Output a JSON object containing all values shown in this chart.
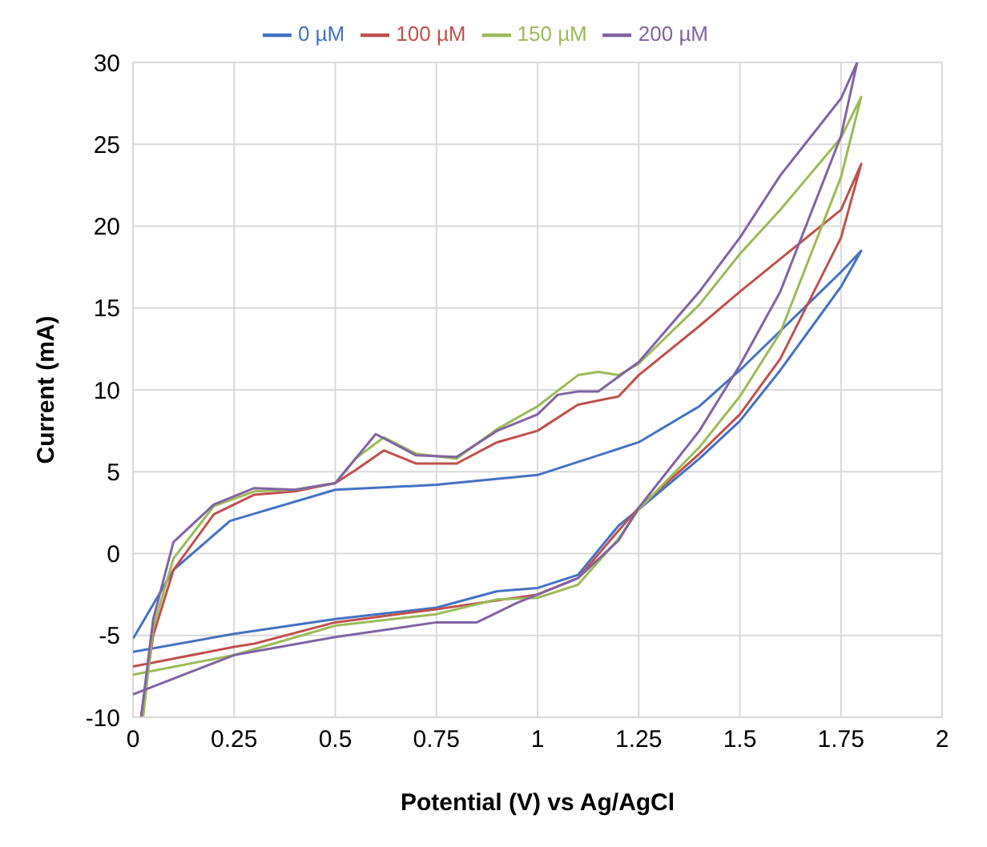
{
  "chart_data": {
    "type": "line",
    "xlabel": "Potential (V) vs Ag/AgCl",
    "ylabel": "Current (mA)",
    "xlim": [
      0,
      2
    ],
    "xticks": [
      0,
      0.25,
      0.5,
      0.75,
      1,
      1.25,
      1.5,
      1.75,
      2
    ],
    "ylim": [
      -10,
      30
    ],
    "yticks": [
      -10,
      -5,
      0,
      5,
      10,
      15,
      20,
      25,
      30
    ],
    "grid": true,
    "legend": "top",
    "marker": "none",
    "line_style": "solid",
    "series": [
      {
        "name": "0 µM",
        "color": "#4472c4",
        "x": [
          0,
          0.25,
          0.5,
          0.75,
          0.9,
          1.0,
          1.1,
          1.2,
          1.25,
          1.4,
          1.5,
          1.6,
          1.75,
          1.8,
          1.75,
          1.5,
          1.4,
          1.25,
          1.0,
          0.75,
          0.5,
          0.24,
          0.1,
          0
        ],
        "values": [
          -6.0,
          -4.9,
          -4.0,
          -3.3,
          -2.3,
          -2.1,
          -1.3,
          1.7,
          2.7,
          5.8,
          8.1,
          11.2,
          16.3,
          18.5,
          17.2,
          11.2,
          9.0,
          6.8,
          4.8,
          4.2,
          3.9,
          2.0,
          -1.0,
          -5.2
        ]
      },
      {
        "name": "100 µM",
        "color": "#c0504d",
        "x": [
          0,
          0.25,
          0.3,
          0.5,
          0.75,
          1.0,
          1.1,
          1.2,
          1.25,
          1.4,
          1.5,
          1.6,
          1.75,
          1.8,
          1.75,
          1.6,
          1.5,
          1.4,
          1.25,
          1.2,
          1.1,
          1.0,
          0.9,
          0.8,
          0.7,
          0.62,
          0.55,
          0.5,
          0.4,
          0.3,
          0.2,
          0.1,
          0.05,
          0.02
        ],
        "values": [
          -6.9,
          -5.7,
          -5.5,
          -4.2,
          -3.4,
          -2.5,
          -1.5,
          1.4,
          2.8,
          6.1,
          8.5,
          11.9,
          19.3,
          23.8,
          21.0,
          18.0,
          16.0,
          13.9,
          10.9,
          9.6,
          9.1,
          7.5,
          6.8,
          5.5,
          5.5,
          6.3,
          5.1,
          4.3,
          3.8,
          3.6,
          2.4,
          -1.0,
          -5.0,
          -10
        ]
      },
      {
        "name": "150 µM",
        "color": "#9bbb59",
        "x": [
          0,
          0.25,
          0.5,
          0.75,
          0.9,
          1.0,
          1.1,
          1.2,
          1.25,
          1.4,
          1.5,
          1.6,
          1.75,
          1.8,
          1.75,
          1.6,
          1.5,
          1.4,
          1.25,
          1.2,
          1.15,
          1.1,
          1.0,
          0.9,
          0.8,
          0.7,
          0.62,
          0.55,
          0.5,
          0.4,
          0.3,
          0.2,
          0.1,
          0.05,
          0.025
        ],
        "values": [
          -7.4,
          -6.2,
          -4.4,
          -3.7,
          -2.8,
          -2.7,
          -1.9,
          0.9,
          2.7,
          6.5,
          9.6,
          13.5,
          23.0,
          27.9,
          25.4,
          21.0,
          18.3,
          15.2,
          11.6,
          10.9,
          11.1,
          10.9,
          9.0,
          7.6,
          5.8,
          6.1,
          7.1,
          5.8,
          4.3,
          3.9,
          3.8,
          2.9,
          -0.3,
          -4.5,
          -10
        ]
      },
      {
        "name": "200 µM",
        "color": "#8064a2",
        "x": [
          0,
          0.25,
          0.5,
          0.75,
          0.85,
          0.95,
          1.0,
          1.1,
          1.2,
          1.25,
          1.4,
          1.5,
          1.6,
          1.75,
          1.79,
          1.75,
          1.6,
          1.5,
          1.4,
          1.25,
          1.15,
          1.1,
          1.05,
          1.0,
          0.9,
          0.8,
          0.7,
          0.6,
          0.5,
          0.4,
          0.3,
          0.2,
          0.1,
          0.05,
          0.02
        ],
        "values": [
          -8.6,
          -6.2,
          -5.1,
          -4.2,
          -4.2,
          -3.0,
          -2.5,
          -1.5,
          0.8,
          2.8,
          7.5,
          11.5,
          16.0,
          25.5,
          30.0,
          27.8,
          23.1,
          19.3,
          16.0,
          11.7,
          9.9,
          9.9,
          9.7,
          8.5,
          7.5,
          5.9,
          6.0,
          7.3,
          4.3,
          3.9,
          4.0,
          3.0,
          0.7,
          -4.0,
          -10
        ]
      }
    ]
  }
}
